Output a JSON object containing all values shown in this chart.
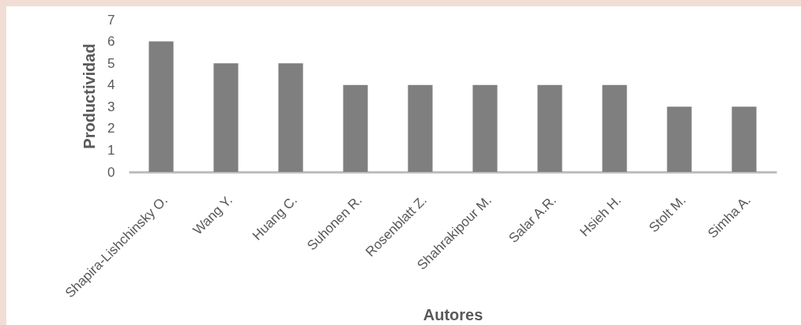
{
  "chart_data": {
    "type": "bar",
    "xlabel": "Autores",
    "ylabel": "Productividad",
    "categories": [
      "Shapira-Lishchinsky O.",
      "Wang Y.",
      "Huang C.",
      "Suhonen R.",
      "Rosenblatt Z.",
      "Shahrakipour M.",
      "Salar A.R.",
      "Hsieh H.",
      "Stolt M.",
      "Simha A."
    ],
    "values": [
      6,
      5,
      5,
      4,
      4,
      4,
      4,
      4,
      3,
      3
    ],
    "color": "#7f7f7f",
    "ylim": [
      0,
      7
    ],
    "yticks": [
      0,
      1,
      2,
      3,
      4,
      5,
      6,
      7
    ]
  }
}
